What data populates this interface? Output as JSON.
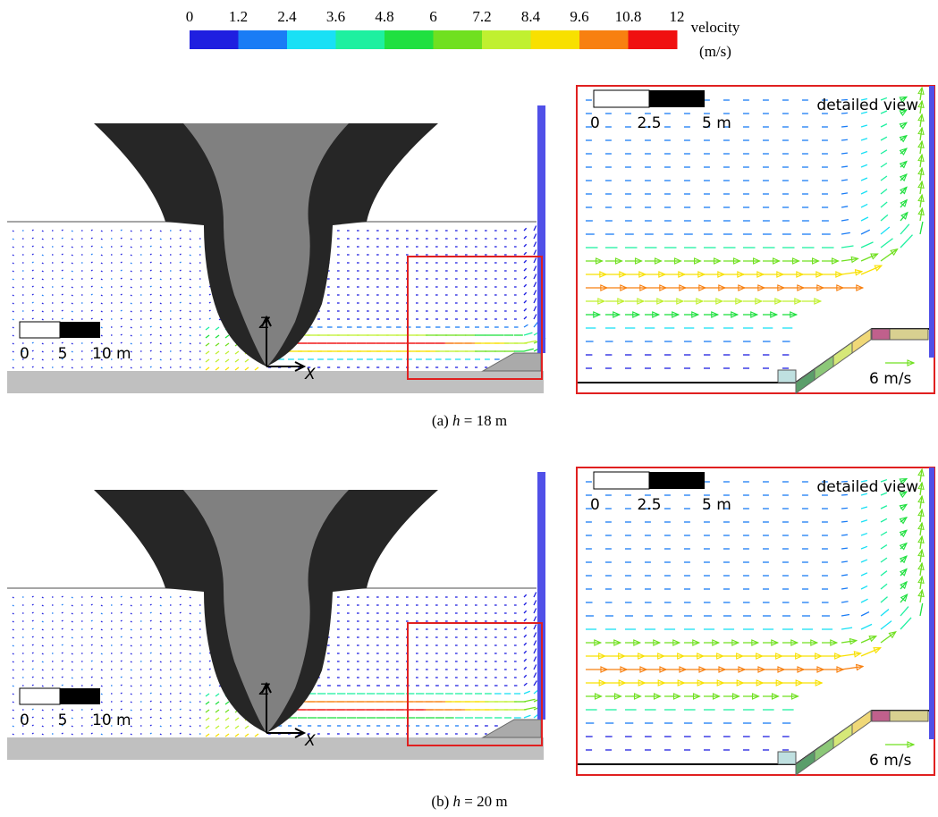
{
  "colorbar": {
    "ticks": [
      "0",
      "1.2",
      "2.4",
      "3.6",
      "4.8",
      "6",
      "7.2",
      "8.4",
      "9.6",
      "10.8",
      "12"
    ],
    "colors": [
      "#1f1fe0",
      "#1a7cf5",
      "#19e0f5",
      "#1ef0a0",
      "#20e040",
      "#70e020",
      "#c0f030",
      "#f8e000",
      "#f88010",
      "#f01010"
    ],
    "label": "velocity",
    "unit": "(m/s)"
  },
  "panels": [
    {
      "caption": {
        "prefix": "(a)",
        "variable": "h",
        "value": "= 18 m"
      },
      "main": {
        "scale_labels": [
          "0",
          "5",
          "10 m"
        ],
        "axes": [
          "Z",
          "X"
        ]
      },
      "detail": {
        "title": "detailed view",
        "scale_labels": [
          "0",
          "2.5",
          "5 m"
        ],
        "reference": "6 m/s"
      }
    },
    {
      "caption": {
        "prefix": "(b)",
        "variable": "h",
        "value": "= 20 m"
      },
      "main": {
        "scale_labels": [
          "0",
          "5",
          "10 m"
        ],
        "axes": [
          "Z",
          "X"
        ]
      },
      "detail": {
        "title": "detailed view",
        "scale_labels": [
          "0",
          "2.5",
          "5 m"
        ],
        "reference": "6 m/s"
      }
    }
  ]
}
